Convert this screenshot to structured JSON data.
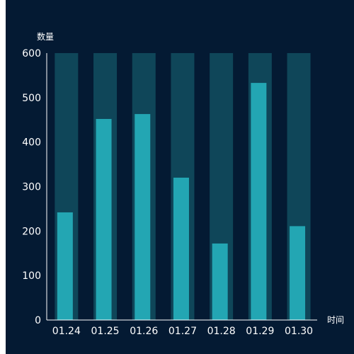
{
  "chart_data": {
    "type": "bar",
    "categories": [
      "01.24",
      "01.25",
      "01.26",
      "01.27",
      "01.28",
      "01.29",
      "01.30"
    ],
    "values": [
      242,
      452,
      463,
      320,
      172,
      533,
      211
    ],
    "background_values": [
      600,
      600,
      600,
      600,
      600,
      600,
      600
    ],
    "ylabel": "数量",
    "xlabel": "时间",
    "ylim": [
      0,
      600
    ],
    "yticks": [
      0,
      100,
      200,
      300,
      400,
      500,
      600
    ],
    "grid": false,
    "colors": {
      "bar": "#23a6b3",
      "bar_background": "#0f4659",
      "axis": "#ffffff",
      "text": "#ffffff",
      "background": "#041a33"
    }
  }
}
